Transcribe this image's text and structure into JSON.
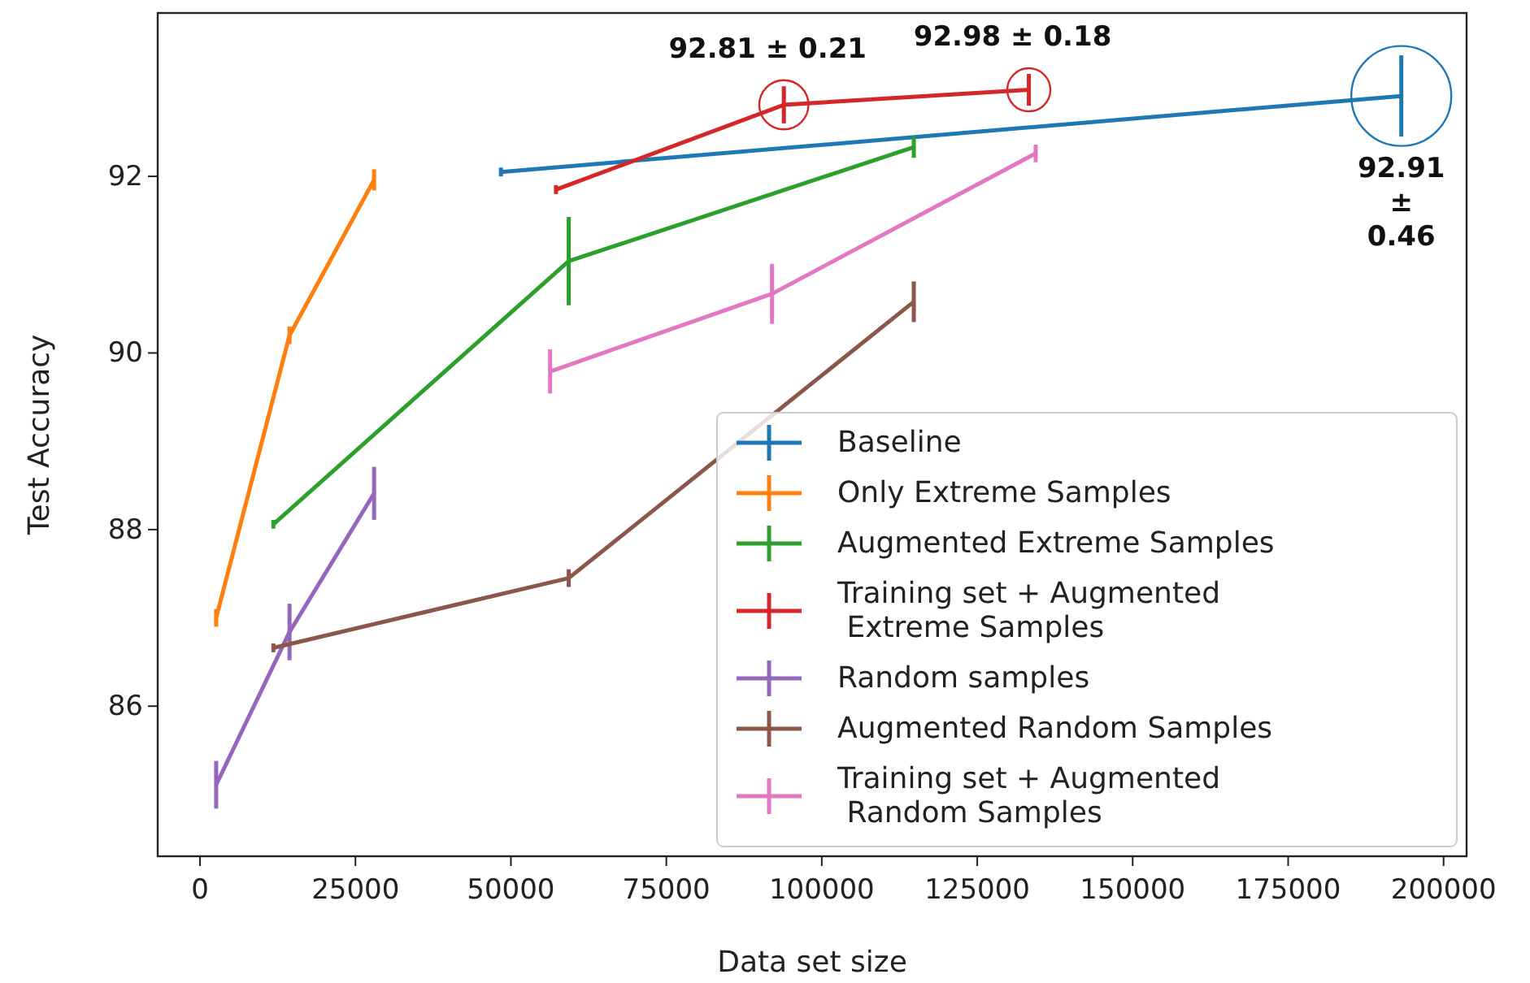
{
  "chart_data": {
    "type": "line",
    "xlabel": "Data set size",
    "ylabel": "Test Accuracy",
    "xlim": [
      -6800,
      203700
    ],
    "xticks": [
      0,
      25000,
      50000,
      75000,
      100000,
      125000,
      150000,
      175000,
      200000
    ],
    "ylim": [
      84.3,
      93.85
    ],
    "yticks": [
      86,
      88,
      90,
      92
    ],
    "grid": false,
    "legend": "bottom right",
    "line_style": "solid",
    "series": [
      {
        "name": "Baseline",
        "color": "#1f77b4",
        "x": [
          48400,
          193200
        ],
        "values": [
          92.05,
          92.91
        ],
        "errors": [
          0.05,
          0.46
        ]
      },
      {
        "name": "Only Extreme Samples",
        "color": "#ff7f0e",
        "x": [
          2600,
          14400,
          28000
        ],
        "values": [
          87.0,
          90.2,
          91.96
        ],
        "errors": [
          0.1,
          0.1,
          0.12
        ]
      },
      {
        "name": "Augmented Extreme Samples",
        "color": "#2ca02c",
        "x": [
          11800,
          59300,
          114800
        ],
        "values": [
          88.06,
          91.04,
          92.33
        ],
        "errors": [
          0.05,
          0.5,
          0.12
        ]
      },
      {
        "name": "Training set + Augmented\n Extreme Samples",
        "color": "#d62728",
        "x": [
          57250,
          93900,
          133300
        ],
        "values": [
          91.85,
          92.81,
          92.98
        ],
        "errors": [
          0.05,
          0.21,
          0.18
        ]
      },
      {
        "name": "Random samples",
        "color": "#9467bd",
        "x": [
          2600,
          14400,
          28000
        ],
        "values": [
          85.11,
          86.84,
          88.41
        ],
        "errors": [
          0.27,
          0.32,
          0.3
        ]
      },
      {
        "name": "Augmented Random Samples",
        "color": "#8c564b",
        "x": [
          11800,
          59300,
          114800
        ],
        "values": [
          86.66,
          87.45,
          90.58
        ],
        "errors": [
          0.05,
          0.1,
          0.23
        ]
      },
      {
        "name": "Training set + Augmented\n Random Samples",
        "color": "#e377c2",
        "x": [
          56300,
          92000,
          134400
        ],
        "values": [
          89.79,
          90.67,
          92.26
        ],
        "errors": [
          0.25,
          0.34,
          0.1
        ]
      }
    ],
    "annotations": [
      {
        "text": "92.81 ± 0.21",
        "x": 93900,
        "y": 92.81
      },
      {
        "text": "92.98 ± 0.18",
        "x": 133300,
        "y": 92.98
      },
      {
        "text": "92.91\n±\n0.46",
        "x": 193200,
        "y": 92.91
      }
    ]
  }
}
